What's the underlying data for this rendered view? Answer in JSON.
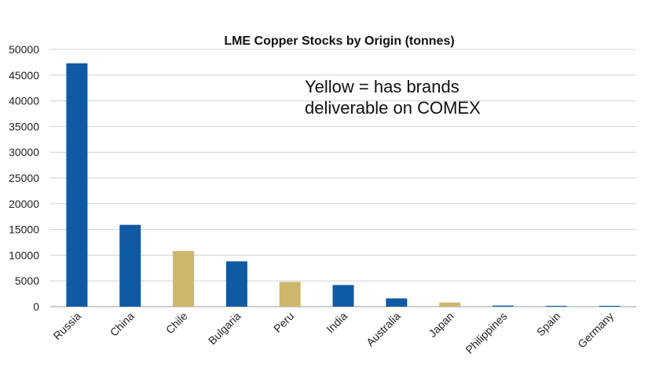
{
  "chart_data": {
    "type": "bar",
    "title": "LME Copper Stocks by Origin (tonnes)",
    "categories": [
      "Russia",
      "China",
      "Chile",
      "Bulgaria",
      "Peru",
      "India",
      "Australia",
      "Japan",
      "Philippines",
      "Spain",
      "Germany"
    ],
    "values": [
      47300,
      15900,
      10800,
      8800,
      4800,
      4200,
      1600,
      800,
      200,
      50,
      50
    ],
    "comex_deliverable": [
      false,
      false,
      true,
      false,
      true,
      false,
      false,
      true,
      false,
      false,
      false
    ],
    "ylim": [
      0,
      50000
    ],
    "yticks": [
      "0",
      "5000",
      "10000",
      "15000",
      "20000",
      "25000",
      "30000",
      "35000",
      "40000",
      "45000",
      "50000"
    ],
    "grid": true,
    "legend": "none",
    "colors": {
      "default": "#0F5AA5",
      "comex": "#CDB76A",
      "grid": "#D0D0D0",
      "axis": "#9A9A9A"
    },
    "annotation": {
      "line1": "Yellow = has brands",
      "line2": "deliverable on COMEX"
    }
  }
}
